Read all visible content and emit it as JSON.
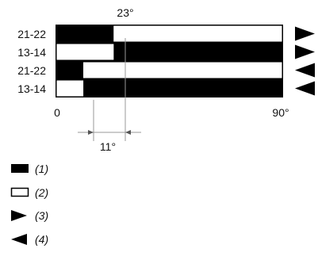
{
  "diagram": {
    "angle_top_label": "23°",
    "angle_bottom_label": "11°",
    "axis_start_label": "0",
    "axis_end_label": "90°",
    "axis_range": [
      0,
      90
    ],
    "rows": [
      {
        "label": "21-22",
        "split": 23,
        "left_fill": "black",
        "right_fill": "white",
        "direction": "right"
      },
      {
        "label": "13-14",
        "split": 23,
        "left_fill": "white",
        "right_fill": "black",
        "direction": "right"
      },
      {
        "label": "21-22",
        "split": 11,
        "left_fill": "black",
        "right_fill": "white",
        "direction": "left"
      },
      {
        "label": "13-14",
        "split": 11,
        "left_fill": "white",
        "right_fill": "black",
        "direction": "left"
      }
    ]
  },
  "legend": [
    {
      "symbol": "black-bar",
      "label": "(1)"
    },
    {
      "symbol": "white-bar",
      "label": "(2)"
    },
    {
      "symbol": "right-arrow",
      "label": "(3)"
    },
    {
      "symbol": "left-arrow",
      "label": "(4)"
    }
  ],
  "colors": {
    "ink": "#000000",
    "paper": "#ffffff",
    "guide": "#9a9a9a"
  }
}
